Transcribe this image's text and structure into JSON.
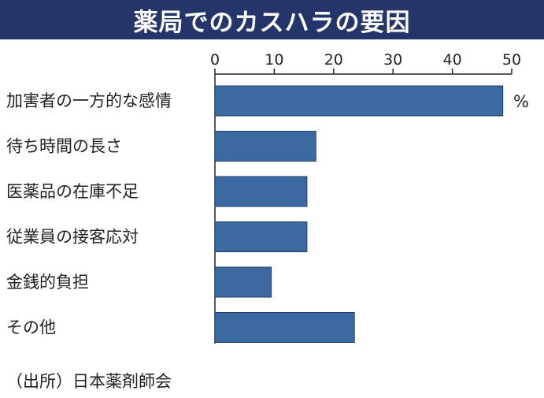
{
  "title": "薬局でのカスハラの要因",
  "source": "（出所）日本薬剤師会",
  "colors": {
    "title_bg": "#24356a",
    "bar": "#3b6aa3",
    "axis": "#222222"
  },
  "chart_data": {
    "type": "bar",
    "orientation": "horizontal",
    "categories": [
      "加害者の一方的な感情",
      "待ち時間の長さ",
      "医薬品の在庫不足",
      "従業員の接客応対",
      "金銭的負担",
      "その他"
    ],
    "values": [
      48.5,
      17,
      15.5,
      15.5,
      9.5,
      23.5
    ],
    "unit": "%",
    "xlim": [
      0,
      50
    ],
    "xticks": [
      0,
      10,
      20,
      30,
      40,
      50
    ],
    "x_axis_position": "top",
    "grid": false,
    "legend": "none"
  }
}
